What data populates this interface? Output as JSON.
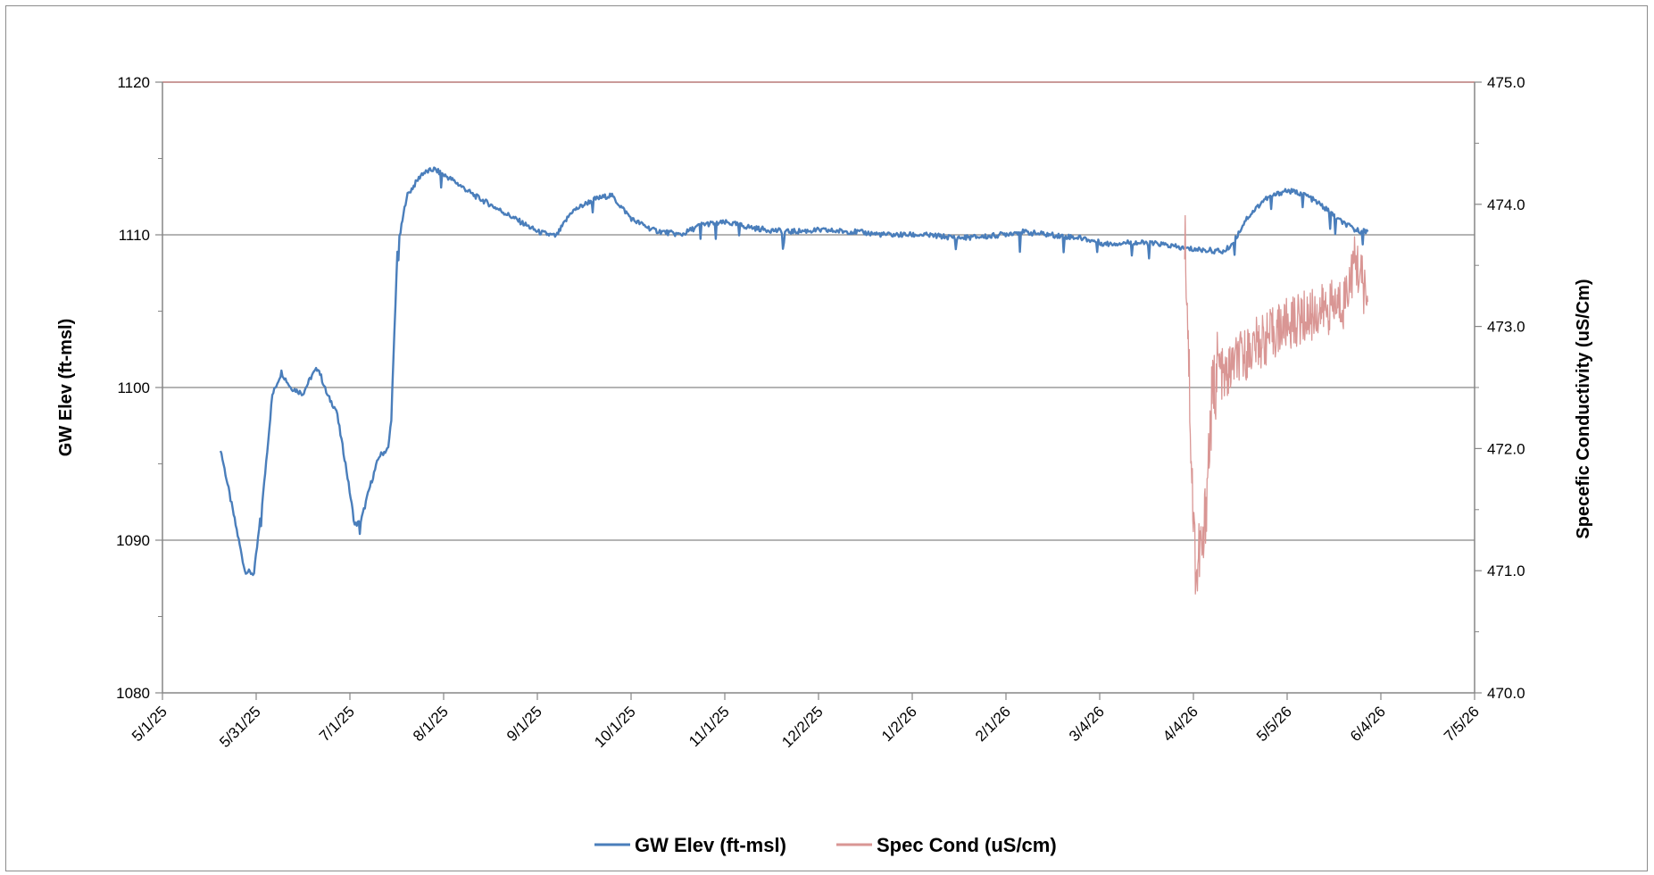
{
  "chart_data": {
    "type": "line",
    "title": "",
    "xlabel": "",
    "ylabel": "GW Elev (ft-msl)",
    "y2label": "Specefic Conductivity (uS/Cm)",
    "x_ticks": [
      "5/1/25",
      "5/31/25",
      "7/1/25",
      "8/1/25",
      "9/1/25",
      "10/1/25",
      "11/1/25",
      "12/2/25",
      "1/2/26",
      "2/1/26",
      "3/4/26",
      "4/4/26",
      "5/5/26",
      "6/4/26",
      "7/5/26"
    ],
    "x_range": [
      "2025-05-01",
      "2026-07-05"
    ],
    "y_ticks": [
      "1080",
      "1090",
      "1100",
      "1110",
      "1120"
    ],
    "ylim": [
      1080,
      1120
    ],
    "y2_ticks": [
      "470.0",
      "471.0",
      "472.0",
      "473.0",
      "474.0",
      "475.0"
    ],
    "y2lim": [
      470.0,
      475.0
    ],
    "grid": "horizontal major",
    "legend_position": "bottom",
    "series": [
      {
        "name": "GW Elev (ft-msl)",
        "axis": "left",
        "color": "#4a7ebb",
        "points": [
          [
            "2025-05-20",
            1096.0
          ],
          [
            "2025-05-23",
            1093.0
          ],
          [
            "2025-05-26",
            1090.0
          ],
          [
            "2025-05-28",
            1088.0
          ],
          [
            "2025-05-31",
            1087.8
          ],
          [
            "2025-06-03",
            1093.0
          ],
          [
            "2025-06-06",
            1099.5
          ],
          [
            "2025-06-09",
            1101.0
          ],
          [
            "2025-06-12",
            1100.0
          ],
          [
            "2025-06-16",
            1099.6
          ],
          [
            "2025-06-19",
            1100.8
          ],
          [
            "2025-06-21",
            1101.3
          ],
          [
            "2025-06-24",
            1099.5
          ],
          [
            "2025-06-27",
            1098.5
          ],
          [
            "2025-06-30",
            1095.0
          ],
          [
            "2025-07-03",
            1091.0
          ],
          [
            "2025-07-05",
            1091.2
          ],
          [
            "2025-07-08",
            1093.5
          ],
          [
            "2025-07-11",
            1095.5
          ],
          [
            "2025-07-14",
            1096.0
          ],
          [
            "2025-07-15",
            1098.0
          ],
          [
            "2025-07-17",
            1109.0
          ],
          [
            "2025-07-20",
            1112.5
          ],
          [
            "2025-07-25",
            1114.0
          ],
          [
            "2025-07-29",
            1114.3
          ],
          [
            "2025-08-04",
            1113.6
          ],
          [
            "2025-08-11",
            1112.6
          ],
          [
            "2025-08-18",
            1111.8
          ],
          [
            "2025-08-25",
            1111.0
          ],
          [
            "2025-09-01",
            1110.2
          ],
          [
            "2025-09-07",
            1109.9
          ],
          [
            "2025-09-12",
            1111.5
          ],
          [
            "2025-09-19",
            1112.3
          ],
          [
            "2025-09-25",
            1112.6
          ],
          [
            "2025-10-02",
            1111.0
          ],
          [
            "2025-10-09",
            1110.3
          ],
          [
            "2025-10-18",
            1110.0
          ],
          [
            "2025-10-25",
            1110.7
          ],
          [
            "2025-11-02",
            1110.8
          ],
          [
            "2025-11-12",
            1110.4
          ],
          [
            "2025-11-22",
            1110.2
          ],
          [
            "2025-12-02",
            1110.3
          ],
          [
            "2025-12-14",
            1110.2
          ],
          [
            "2025-12-24",
            1110.0
          ],
          [
            "2026-01-05",
            1110.0
          ],
          [
            "2026-01-17",
            1109.8
          ],
          [
            "2026-01-27",
            1109.9
          ],
          [
            "2026-02-06",
            1110.2
          ],
          [
            "2026-02-16",
            1110.0
          ],
          [
            "2026-02-26",
            1109.8
          ],
          [
            "2026-03-06",
            1109.4
          ],
          [
            "2026-03-14",
            1109.5
          ],
          [
            "2026-03-24",
            1109.4
          ],
          [
            "2026-04-01",
            1109.1
          ],
          [
            "2026-04-08",
            1109.0
          ],
          [
            "2026-04-14",
            1108.9
          ],
          [
            "2026-04-17",
            1109.5
          ],
          [
            "2026-04-21",
            1111.0
          ],
          [
            "2026-04-27",
            1112.3
          ],
          [
            "2026-05-04",
            1112.9
          ],
          [
            "2026-05-10",
            1112.7
          ],
          [
            "2026-05-16",
            1111.9
          ],
          [
            "2026-05-22",
            1110.9
          ],
          [
            "2026-05-27",
            1110.3
          ],
          [
            "2026-05-31",
            1110.2
          ]
        ]
      },
      {
        "name": "Spec Cond (uS/cm)",
        "axis": "right",
        "color": "#d99694",
        "points": [
          [
            "2026-04-01",
            473.85
          ],
          [
            "2026-04-02",
            473.1
          ],
          [
            "2026-04-03",
            472.1
          ],
          [
            "2026-04-04",
            471.3
          ],
          [
            "2026-04-05",
            470.95
          ],
          [
            "2026-04-06",
            471.2
          ],
          [
            "2026-04-07",
            471.1
          ],
          [
            "2026-04-08",
            471.6
          ],
          [
            "2026-04-09",
            472.0
          ],
          [
            "2026-04-10",
            472.4
          ],
          [
            "2026-04-12",
            472.7
          ],
          [
            "2026-04-14",
            472.55
          ],
          [
            "2026-04-17",
            472.7
          ],
          [
            "2026-04-20",
            472.75
          ],
          [
            "2026-04-24",
            472.85
          ],
          [
            "2026-04-28",
            472.9
          ],
          [
            "2026-05-03",
            473.0
          ],
          [
            "2026-05-08",
            473.05
          ],
          [
            "2026-05-13",
            473.1
          ],
          [
            "2026-05-18",
            473.15
          ],
          [
            "2026-05-23",
            473.2
          ],
          [
            "2026-05-27",
            473.55
          ],
          [
            "2026-05-31",
            473.2
          ]
        ]
      }
    ]
  }
}
